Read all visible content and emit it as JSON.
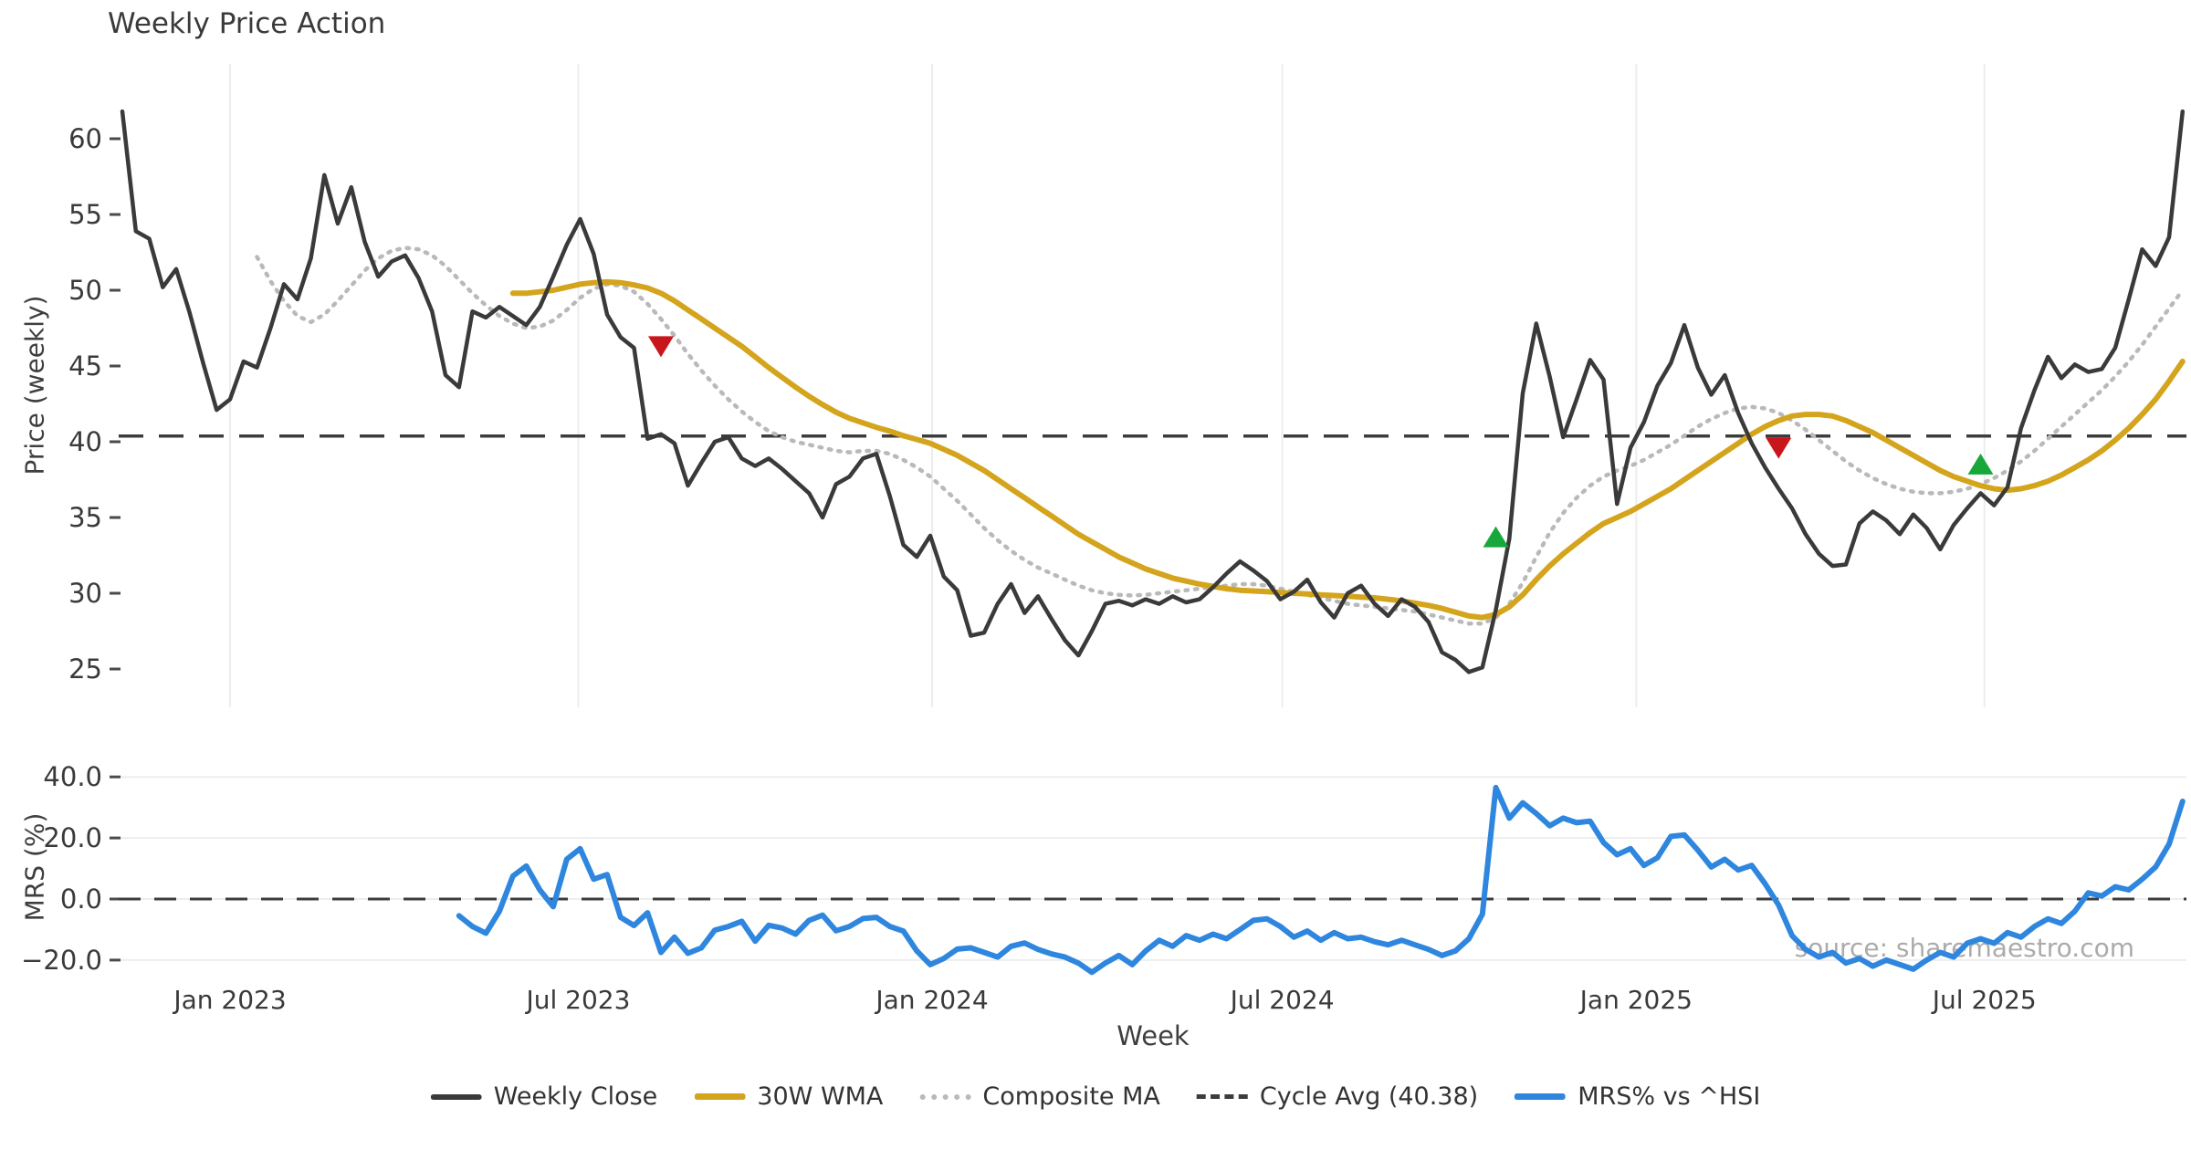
{
  "title": "Weekly Price Action",
  "watermark": "source: sharemaestro.com",
  "legend": {
    "items": [
      {
        "label": "Weekly Close"
      },
      {
        "label": "30W WMA"
      },
      {
        "label": "Composite MA"
      },
      {
        "label": "Cycle Avg (40.38)"
      },
      {
        "label": "MRS% vs ^HSI"
      }
    ]
  },
  "colors": {
    "close": "#3a3a3a",
    "wma": "#d4a41d",
    "composite": "#b9b9b9",
    "cycle": "#3c3c3c",
    "mrs": "#2e86de",
    "sell": "#c9161d",
    "buy": "#18a73a",
    "grid": "#ededed"
  },
  "chart_data": [
    {
      "type": "line",
      "panel": "price",
      "title": "Weekly Price Action",
      "ylabel": "Price (weekly)",
      "ylim": [
        22.5,
        64.9
      ],
      "grid": "vertical-only",
      "x_unit": "week",
      "x_ticks": [
        {
          "week": 8.0,
          "label": "Jan 2023"
        },
        {
          "week": 33.86,
          "label": "Jul 2023"
        },
        {
          "week": 60.14,
          "label": "Jan 2024"
        },
        {
          "week": 86.14,
          "label": "Jul 2024"
        },
        {
          "week": 112.43,
          "label": "Jan 2025"
        },
        {
          "week": 138.29,
          "label": "Jul 2025"
        }
      ],
      "y_ticks": [
        {
          "v": 25,
          "label": "25"
        },
        {
          "v": 30,
          "label": "30"
        },
        {
          "v": 35,
          "label": "35"
        },
        {
          "v": 40,
          "label": "40"
        },
        {
          "v": 45,
          "label": "45"
        },
        {
          "v": 50,
          "label": "50"
        },
        {
          "v": 55,
          "label": "55"
        },
        {
          "v": 60,
          "label": "60"
        }
      ],
      "cycle_avg": 40.38,
      "series": [
        {
          "name": "Weekly Close",
          "style": "solid",
          "color_key": "close",
          "start_week": 0,
          "values": [
            61.8,
            53.9,
            53.4,
            50.2,
            51.4,
            48.5,
            45.2,
            42.1,
            42.8,
            45.3,
            44.9,
            47.5,
            50.4,
            49.4,
            52.1,
            57.6,
            54.4,
            56.8,
            53.2,
            50.9,
            51.9,
            52.3,
            50.8,
            48.6,
            44.4,
            43.6,
            48.6,
            48.2,
            48.9,
            48.3,
            47.7,
            48.9,
            50.9,
            53.0,
            54.7,
            52.4,
            48.4,
            46.9,
            46.2,
            40.2,
            40.5,
            39.9,
            37.1,
            38.6,
            40.0,
            40.3,
            38.9,
            38.4,
            38.9,
            38.2,
            37.4,
            36.6,
            35.0,
            37.2,
            37.7,
            38.9,
            39.2,
            36.4,
            33.2,
            32.4,
            33.8,
            31.1,
            30.2,
            27.2,
            27.4,
            29.3,
            30.6,
            28.7,
            29.8,
            28.3,
            26.9,
            25.9,
            27.5,
            29.3,
            29.5,
            29.2,
            29.6,
            29.3,
            29.8,
            29.4,
            29.6,
            30.4,
            31.3,
            32.1,
            31.5,
            30.8,
            29.6,
            30.1,
            30.9,
            29.4,
            28.4,
            30.0,
            30.5,
            29.3,
            28.5,
            29.6,
            29.1,
            28.1,
            26.1,
            25.6,
            24.8,
            25.1,
            28.9,
            33.6,
            43.2,
            47.8,
            44.3,
            40.3,
            42.8,
            45.4,
            44.1,
            35.9,
            39.6,
            41.3,
            43.7,
            45.2,
            47.7,
            44.9,
            43.1,
            44.4,
            41.9,
            39.9,
            38.3,
            36.9,
            35.6,
            33.9,
            32.6,
            31.8,
            31.9,
            34.6,
            35.4,
            34.8,
            33.9,
            35.2,
            34.3,
            32.9,
            34.5,
            35.6,
            36.6,
            35.8,
            37.0,
            40.9,
            43.4,
            45.6,
            44.2,
            45.1,
            44.6,
            44.8,
            46.2,
            49.4,
            52.7,
            51.6,
            53.5,
            61.8
          ]
        },
        {
          "name": "30W WMA",
          "style": "solid",
          "color_key": "wma",
          "start_week": 29,
          "values": [
            49.8,
            49.8,
            49.9,
            50.0,
            50.2,
            50.4,
            50.5,
            50.55,
            50.5,
            50.35,
            50.15,
            49.8,
            49.3,
            48.7,
            48.1,
            47.5,
            46.9,
            46.3,
            45.6,
            44.9,
            44.25,
            43.6,
            43.0,
            42.45,
            41.95,
            41.55,
            41.25,
            40.95,
            40.7,
            40.4,
            40.15,
            39.9,
            39.5,
            39.1,
            38.6,
            38.1,
            37.5,
            36.9,
            36.3,
            35.7,
            35.1,
            34.5,
            33.9,
            33.4,
            32.9,
            32.4,
            32.0,
            31.6,
            31.3,
            31.0,
            30.8,
            30.6,
            30.45,
            30.3,
            30.2,
            30.15,
            30.1,
            30.05,
            30.0,
            29.95,
            29.9,
            29.85,
            29.8,
            29.75,
            29.7,
            29.6,
            29.5,
            29.35,
            29.2,
            29.0,
            28.75,
            28.5,
            28.4,
            28.6,
            29.1,
            29.9,
            30.9,
            31.8,
            32.6,
            33.3,
            34.0,
            34.6,
            35.0,
            35.4,
            35.9,
            36.4,
            36.9,
            37.5,
            38.1,
            38.7,
            39.3,
            39.9,
            40.5,
            41.0,
            41.4,
            41.7,
            41.8,
            41.8,
            41.7,
            41.4,
            41.0,
            40.6,
            40.1,
            39.6,
            39.1,
            38.6,
            38.1,
            37.7,
            37.4,
            37.1,
            36.9,
            36.8,
            36.9,
            37.1,
            37.4,
            37.8,
            38.3,
            38.8,
            39.4,
            40.1,
            40.9,
            41.8,
            42.8,
            44.0,
            45.3
          ]
        },
        {
          "name": "Composite MA",
          "style": "dotted",
          "color_key": "composite",
          "start_week": 10,
          "values": [
            52.2,
            50.6,
            49.3,
            48.3,
            47.9,
            48.4,
            49.3,
            50.3,
            51.3,
            52.1,
            52.6,
            52.8,
            52.7,
            52.3,
            51.6,
            50.7,
            49.8,
            49.0,
            48.3,
            47.8,
            47.5,
            47.6,
            48.0,
            48.7,
            49.5,
            50.1,
            50.4,
            50.3,
            49.9,
            49.1,
            48.1,
            47.0,
            45.8,
            44.7,
            43.7,
            42.8,
            42.0,
            41.3,
            40.7,
            40.3,
            40.0,
            39.8,
            39.6,
            39.4,
            39.3,
            39.4,
            39.4,
            39.2,
            38.8,
            38.3,
            37.7,
            36.9,
            36.1,
            35.2,
            34.3,
            33.5,
            32.8,
            32.2,
            31.7,
            31.3,
            30.9,
            30.5,
            30.2,
            30.0,
            29.9,
            29.85,
            29.9,
            30.0,
            30.1,
            30.2,
            30.3,
            30.4,
            30.5,
            30.6,
            30.6,
            30.5,
            30.3,
            30.1,
            29.9,
            29.7,
            29.5,
            29.3,
            29.2,
            29.1,
            29.0,
            28.9,
            28.8,
            28.6,
            28.4,
            28.2,
            28.0,
            28.0,
            28.4,
            29.3,
            30.7,
            32.4,
            34.0,
            35.3,
            36.3,
            37.1,
            37.7,
            38.1,
            38.4,
            38.8,
            39.3,
            39.8,
            40.4,
            41.0,
            41.5,
            41.9,
            42.2,
            42.3,
            42.2,
            41.9,
            41.4,
            40.8,
            40.1,
            39.4,
            38.7,
            38.1,
            37.6,
            37.2,
            36.9,
            36.7,
            36.6,
            36.6,
            36.7,
            36.9,
            37.2,
            37.6,
            38.1,
            38.7,
            39.4,
            40.2,
            41.0,
            41.8,
            42.6,
            43.4,
            44.3,
            45.3,
            46.4,
            47.6,
            48.8,
            50.0
          ]
        },
        {
          "name": "Cycle Avg (40.38)",
          "style": "dashed",
          "color_key": "cycle",
          "value": 40.38
        }
      ],
      "markers": {
        "sell": {
          "shape": "triangle-down",
          "color_key": "sell",
          "points": [
            {
              "week": 40,
              "value": 46.3
            },
            {
              "week": 123,
              "value": 39.6
            }
          ]
        },
        "buy": {
          "shape": "triangle-up",
          "color_key": "buy",
          "points": [
            {
              "week": 102,
              "value": 33.7
            },
            {
              "week": 138,
              "value": 38.5
            }
          ]
        }
      }
    },
    {
      "type": "line",
      "panel": "mrs",
      "ylabel": "MRS (%)",
      "xlabel": "Week",
      "ylim": [
        -26,
        46
      ],
      "grid": "horizontal-only",
      "zero_line": 0.0,
      "y_ticks": [
        {
          "v": 40,
          "label": "40.0"
        },
        {
          "v": 20,
          "label": "20.0"
        },
        {
          "v": 0,
          "label": "0.0"
        },
        {
          "v": -20,
          "label": "−20.0"
        }
      ],
      "series": [
        {
          "name": "MRS% vs ^HSI",
          "style": "solid",
          "color_key": "mrs",
          "start_week": 25,
          "values": [
            -5.5,
            -9.0,
            -11.2,
            -4.0,
            7.5,
            10.8,
            3.0,
            -2.5,
            13.0,
            16.5,
            6.5,
            8.0,
            -6.0,
            -8.7,
            -4.5,
            -17.5,
            -12.5,
            -17.8,
            -16.0,
            -10.2,
            -9.0,
            -7.3,
            -13.8,
            -8.6,
            -9.5,
            -11.5,
            -7.0,
            -5.3,
            -10.4,
            -9.0,
            -6.4,
            -6.0,
            -9.0,
            -10.5,
            -17.0,
            -21.5,
            -19.5,
            -16.4,
            -16.0,
            -17.5,
            -19.0,
            -15.5,
            -14.4,
            -16.5,
            -18.0,
            -19.0,
            -21.0,
            -24.0,
            -21.0,
            -18.5,
            -21.5,
            -17.0,
            -13.5,
            -15.5,
            -12.0,
            -13.5,
            -11.5,
            -13.0,
            -10.0,
            -7.0,
            -6.5,
            -9.0,
            -12.5,
            -10.5,
            -13.5,
            -11.0,
            -13.0,
            -12.5,
            -14.0,
            -15.0,
            -13.5,
            -15.0,
            -16.5,
            -18.5,
            -17.0,
            -13.0,
            -5.0,
            36.5,
            26.5,
            31.5,
            28.0,
            24.0,
            26.5,
            25.0,
            25.5,
            18.5,
            14.5,
            16.5,
            11.0,
            13.5,
            20.5,
            21.0,
            16.0,
            10.5,
            13.0,
            9.5,
            11.0,
            5.0,
            -2.0,
            -12.0,
            -16.5,
            -19.0,
            -17.5,
            -21.0,
            -19.5,
            -22.0,
            -20.0,
            -21.5,
            -23.0,
            -20.0,
            -17.5,
            -19.0,
            -14.5,
            -13.0,
            -14.5,
            -11.0,
            -12.5,
            -9.0,
            -6.5,
            -8.0,
            -4.0,
            2.0,
            1.0,
            4.0,
            3.0,
            6.5,
            10.5,
            18.0,
            32.0
          ]
        }
      ]
    }
  ]
}
